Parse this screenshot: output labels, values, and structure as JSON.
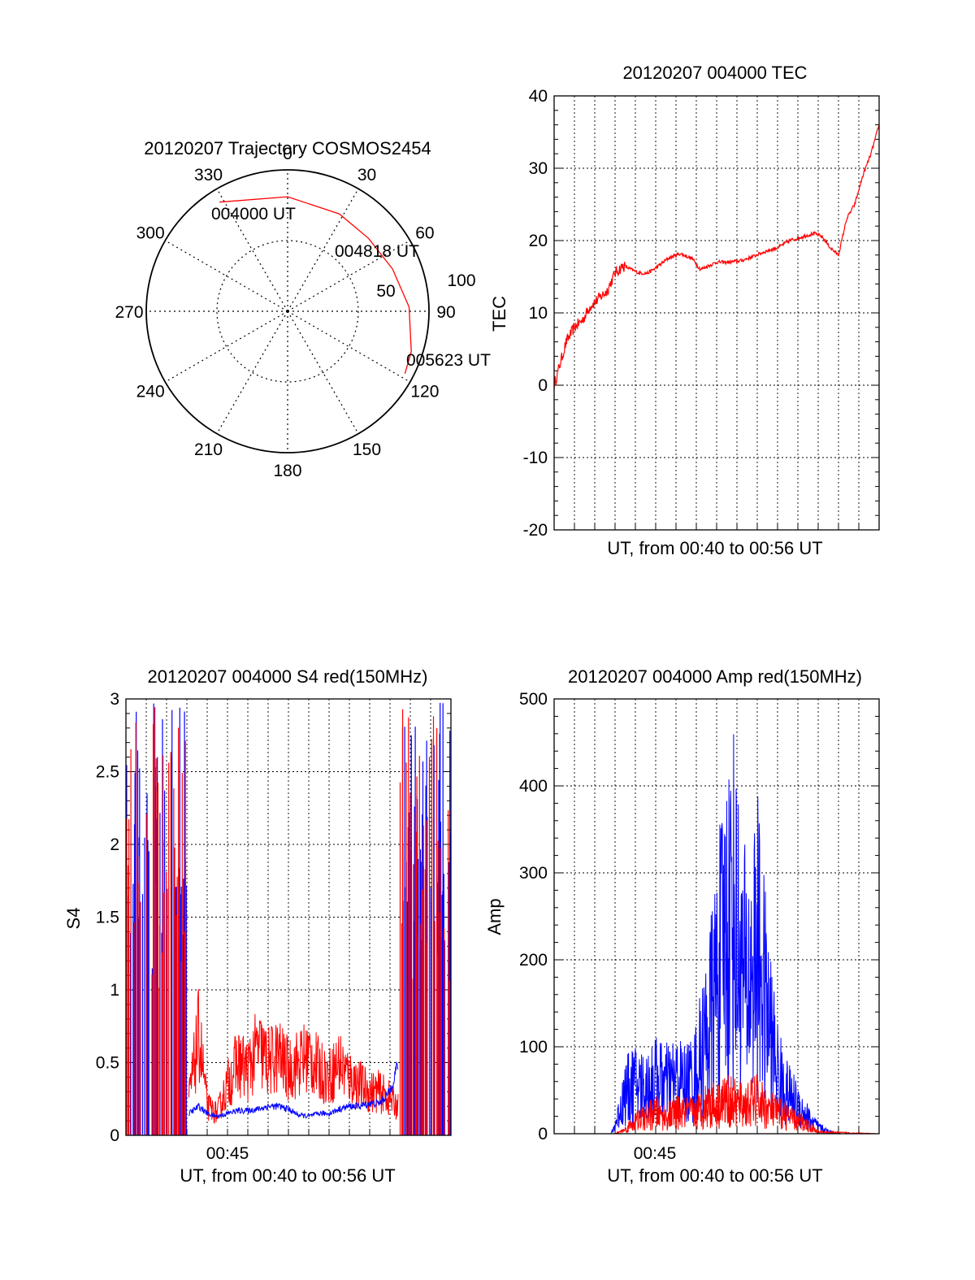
{
  "charts": {
    "polar": {
      "title": "20120207 Trajectory COSMOS2454",
      "azimuth_labels": [
        "0",
        "30",
        "60",
        "90",
        "120",
        "150",
        "180",
        "210",
        "240",
        "270",
        "300",
        "330"
      ],
      "radial_labels": [
        "50",
        "100"
      ],
      "annotations": [
        "004000 UT",
        "004818 UT",
        "005623 UT"
      ],
      "trace_color": "#ff0000"
    },
    "tec": {
      "title": "20120207 004000 TEC",
      "ylabel": "TEC",
      "xlabel": "UT, from 00:40 to 00:56 UT",
      "yticks": [
        "40",
        "30",
        "20",
        "10",
        "0",
        "-10",
        "-20"
      ],
      "color": "#ff0000"
    },
    "s4": {
      "title": "20120207 004000 S4 red(150MHz)",
      "ylabel": "S4",
      "xlabel": "UT, from 00:40 to 00:56 UT",
      "xtick": "00:45",
      "yticks": [
        "3",
        "2.5",
        "2",
        "1.5",
        "1",
        "0.5",
        "0"
      ],
      "colors": [
        "#ff0000",
        "#0000ff"
      ]
    },
    "amp": {
      "title": "20120207 004000 Amp red(150MHz)",
      "ylabel": "Amp",
      "xlabel": "UT, from 00:40 to 00:56 UT",
      "xtick": "00:45",
      "yticks": [
        "500",
        "400",
        "300",
        "200",
        "100",
        "0"
      ],
      "colors": [
        "#ff0000",
        "#0000ff"
      ]
    }
  },
  "chart_data": [
    {
      "type": "scatter",
      "subtype": "polar-trajectory",
      "title": "20120207 Trajectory COSMOS2454",
      "theta_direction": "clockwise-from-north",
      "r_range": [
        0,
        100
      ],
      "series": [
        {
          "color": "#ff0000",
          "azimuth": [
            328,
            0,
            28,
            48,
            68,
            88,
            108,
            118
          ],
          "zenith": [
            91,
            81,
            78,
            77,
            80,
            86,
            92,
            94
          ]
        }
      ],
      "annotations": [
        {
          "text": "004000 UT",
          "azimuth": 328,
          "zenith": 91
        },
        {
          "text": "004818 UT",
          "azimuth": 56,
          "zenith": 77
        },
        {
          "text": "005623 UT",
          "azimuth": 118,
          "zenith": 94
        }
      ],
      "grid": true
    },
    {
      "type": "line",
      "title": "20120207 004000 TEC",
      "xlabel": "UT, from 00:40 to 00:56 UT",
      "ylabel": "TEC",
      "ylim": [
        -20,
        40
      ],
      "xlim": [
        0,
        16
      ],
      "x_unit": "minutes after 00:40 UT",
      "grid": true,
      "series": [
        {
          "color": "#ff0000",
          "x": [
            0,
            0.3,
            0.6,
            1.0,
            1.4,
            1.8,
            2.2,
            2.6,
            3.0,
            3.4,
            3.8,
            4.2,
            4.6,
            5.0,
            5.6,
            6.2,
            6.8,
            7.2,
            7.6,
            8.0,
            8.6,
            9.2,
            9.8,
            10.4,
            11.0,
            11.6,
            12.2,
            12.8,
            13.2,
            13.6,
            14.0,
            14.4,
            14.8,
            15.2,
            15.6,
            16.0
          ],
          "y": [
            0,
            3,
            6,
            8,
            9,
            11,
            12,
            13,
            15.5,
            16.5,
            16,
            15.5,
            15.5,
            16.2,
            17.5,
            18.2,
            17.5,
            16,
            16.5,
            17,
            17,
            17.2,
            17.8,
            18.5,
            19,
            20,
            20.5,
            21,
            20.5,
            19,
            18,
            23,
            25,
            29,
            32,
            36
          ]
        }
      ]
    },
    {
      "type": "line",
      "title": "20120207 004000 S4 red(150MHz)",
      "xlabel": "UT, from 00:40 to 00:56 UT",
      "ylabel": "S4",
      "ylim": [
        0,
        3
      ],
      "xlim": [
        0,
        16
      ],
      "x_unit": "minutes after 00:40 UT",
      "x_tick_labels": [
        {
          "x": 5,
          "label": "00:45"
        }
      ],
      "grid": true,
      "series": [
        {
          "color": "#ff0000",
          "x": [
            3.1,
            3.6,
            4.0,
            4.5,
            5.0,
            5.5,
            6.0,
            6.5,
            7.0,
            7.5,
            8.0,
            8.5,
            9.0,
            9.5,
            10.0,
            10.5,
            11.0,
            11.5,
            12.0,
            12.5,
            13.0,
            13.4
          ],
          "y": [
            0.25,
            0.7,
            0.2,
            0.15,
            0.35,
            0.5,
            0.45,
            0.6,
            0.5,
            0.55,
            0.45,
            0.5,
            0.55,
            0.45,
            0.4,
            0.5,
            0.4,
            0.35,
            0.3,
            0.3,
            0.25,
            0.2
          ]
        },
        {
          "color": "#0000ff",
          "x": [
            3.1,
            3.6,
            4.0,
            4.5,
            5.0,
            5.5,
            6.0,
            6.5,
            7.0,
            7.5,
            8.0,
            8.5,
            9.0,
            9.5,
            10.0,
            10.5,
            11.0,
            11.5,
            12.0,
            12.5,
            13.0,
            13.4
          ],
          "y": [
            0.15,
            0.2,
            0.15,
            0.13,
            0.15,
            0.17,
            0.17,
            0.18,
            0.2,
            0.2,
            0.18,
            0.14,
            0.13,
            0.15,
            0.15,
            0.18,
            0.2,
            0.2,
            0.22,
            0.22,
            0.3,
            0.5
          ]
        }
      ]
    },
    {
      "type": "line",
      "title": "20120207 004000 Amp red(150MHz)",
      "xlabel": "UT, from 00:40 to 00:56 UT",
      "ylabel": "Amp",
      "ylim": [
        0,
        500
      ],
      "xlim": [
        0,
        16
      ],
      "x_unit": "minutes after 00:40 UT",
      "x_tick_labels": [
        {
          "x": 5,
          "label": "00:45"
        }
      ],
      "grid": true,
      "series": [
        {
          "color": "#0000ff",
          "x": [
            0,
            2.8,
            3.0,
            3.5,
            4.0,
            4.5,
            5.0,
            5.5,
            6.0,
            6.5,
            7.0,
            7.5,
            8.0,
            8.4,
            8.8,
            9.2,
            9.6,
            10.0,
            10.4,
            10.8,
            11.2,
            11.6,
            12.0,
            12.5,
            13.0,
            13.5,
            14.0,
            16.0
          ],
          "y": [
            0,
            0,
            10,
            50,
            60,
            55,
            65,
            60,
            65,
            60,
            75,
            120,
            180,
            240,
            280,
            200,
            180,
            230,
            160,
            100,
            60,
            45,
            35,
            20,
            8,
            3,
            0,
            0
          ]
        },
        {
          "color": "#ff0000",
          "x": [
            0,
            3.0,
            3.5,
            4.0,
            4.5,
            5.0,
            5.5,
            6.0,
            6.5,
            7.0,
            7.5,
            8.0,
            8.5,
            9.0,
            9.5,
            10.0,
            10.5,
            11.0,
            11.5,
            12.0,
            12.5,
            13.0,
            16.0
          ],
          "y": [
            0,
            0,
            5,
            15,
            20,
            25,
            20,
            25,
            25,
            25,
            35,
            35,
            40,
            35,
            35,
            40,
            30,
            25,
            20,
            15,
            10,
            2,
            0
          ]
        }
      ]
    }
  ]
}
